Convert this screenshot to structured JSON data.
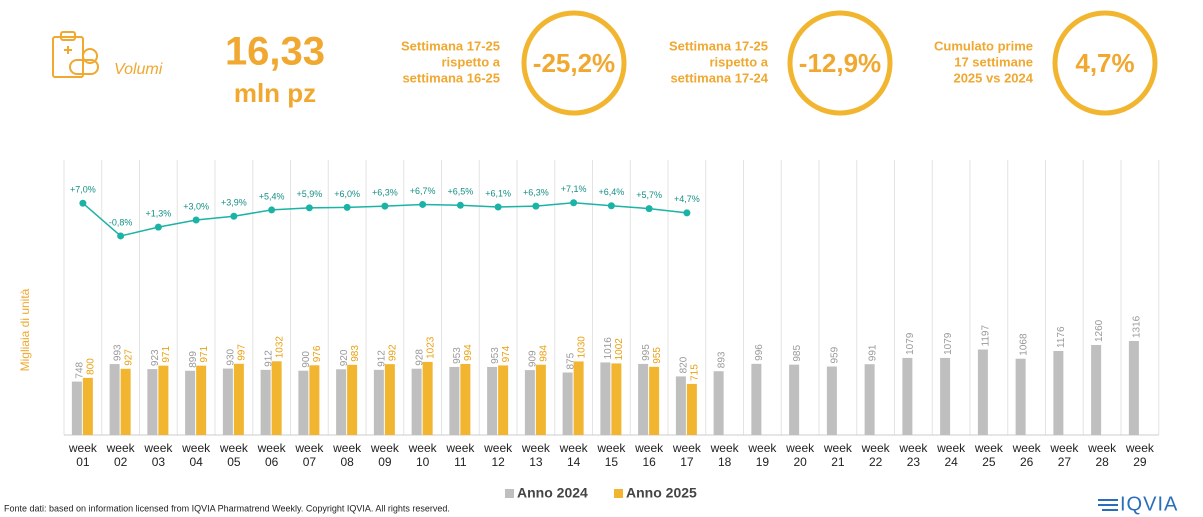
{
  "header": {
    "icon_label": "Volumi",
    "value": "16,33",
    "unit": "mln pz"
  },
  "kpis": [
    {
      "label": [
        "Settimana 17-25",
        "rispetto a",
        "settimana 16-25"
      ],
      "value": "-25,2%"
    },
    {
      "label": [
        "Settimana 17-25",
        "rispetto a",
        "settimana 17-24"
      ],
      "value": "-12,9%"
    },
    {
      "label": [
        "Cumulato prime",
        "17 settimane",
        "2025 vs 2024"
      ],
      "value": "4,7%"
    }
  ],
  "chart_data": {
    "type": "bar",
    "y_axis_label": "Migliaia di unità",
    "categories": [
      "week 01",
      "week 02",
      "week 03",
      "week 04",
      "week 05",
      "week 06",
      "week 07",
      "week 08",
      "week 09",
      "week 10",
      "week 11",
      "week 12",
      "week 13",
      "week 14",
      "week 15",
      "week 16",
      "week 17",
      "week 18",
      "week 19",
      "week 20",
      "week 21",
      "week 22",
      "week 23",
      "week 24",
      "week 25",
      "week 26",
      "week 27",
      "week 28",
      "week 29"
    ],
    "series": [
      {
        "name": "Anno 2024",
        "color": "#bfbfbf",
        "values": [
          748,
          993,
          923,
          899,
          930,
          912,
          900,
          920,
          912,
          928,
          953,
          953,
          909,
          875,
          1016,
          995,
          820,
          893,
          996,
          985,
          959,
          991,
          1079,
          1079,
          1197,
          1068,
          1176,
          1260,
          1316
        ]
      },
      {
        "name": "Anno 2025",
        "color": "#f2b530",
        "values": [
          800,
          927,
          971,
          971,
          997,
          1032,
          976,
          983,
          992,
          1023,
          994,
          974,
          984,
          1030,
          1002,
          955,
          715,
          null,
          null,
          null,
          null,
          null,
          null,
          null,
          null,
          null,
          null,
          null,
          null
        ]
      },
      {
        "type": "line",
        "axis": "y2",
        "color": "#1bb3a5",
        "values": [
          7.0,
          -0.8,
          1.3,
          3.0,
          3.9,
          5.4,
          5.9,
          6.0,
          6.3,
          6.7,
          6.5,
          6.1,
          6.3,
          7.1,
          6.4,
          5.7,
          4.7,
          null,
          null,
          null,
          null,
          null,
          null,
          null,
          null,
          null,
          null,
          null,
          null
        ],
        "value_labels": [
          "+7,0%",
          "-0,8%",
          "+1,3%",
          "+3,0%",
          "+3,9%",
          "+5,4%",
          "+5,9%",
          "+6,0%",
          "+6,3%",
          "+6,7%",
          "+6,5%",
          "+6,1%",
          "+6,3%",
          "+7,1%",
          "+6,4%",
          "+5,7%",
          "+4,7%",
          null,
          null,
          null,
          null,
          null,
          null,
          null,
          null,
          null,
          null,
          null,
          null
        ]
      }
    ],
    "ylim": [
      0,
      1400
    ],
    "y2lim": [
      -2,
      8
    ]
  },
  "footer": {
    "source": "Fonte dati: based on information licensed from IQVIA Pharmatrend Weekly. Copyright IQVIA. All rights reserved.",
    "logo": "IQVIA"
  }
}
